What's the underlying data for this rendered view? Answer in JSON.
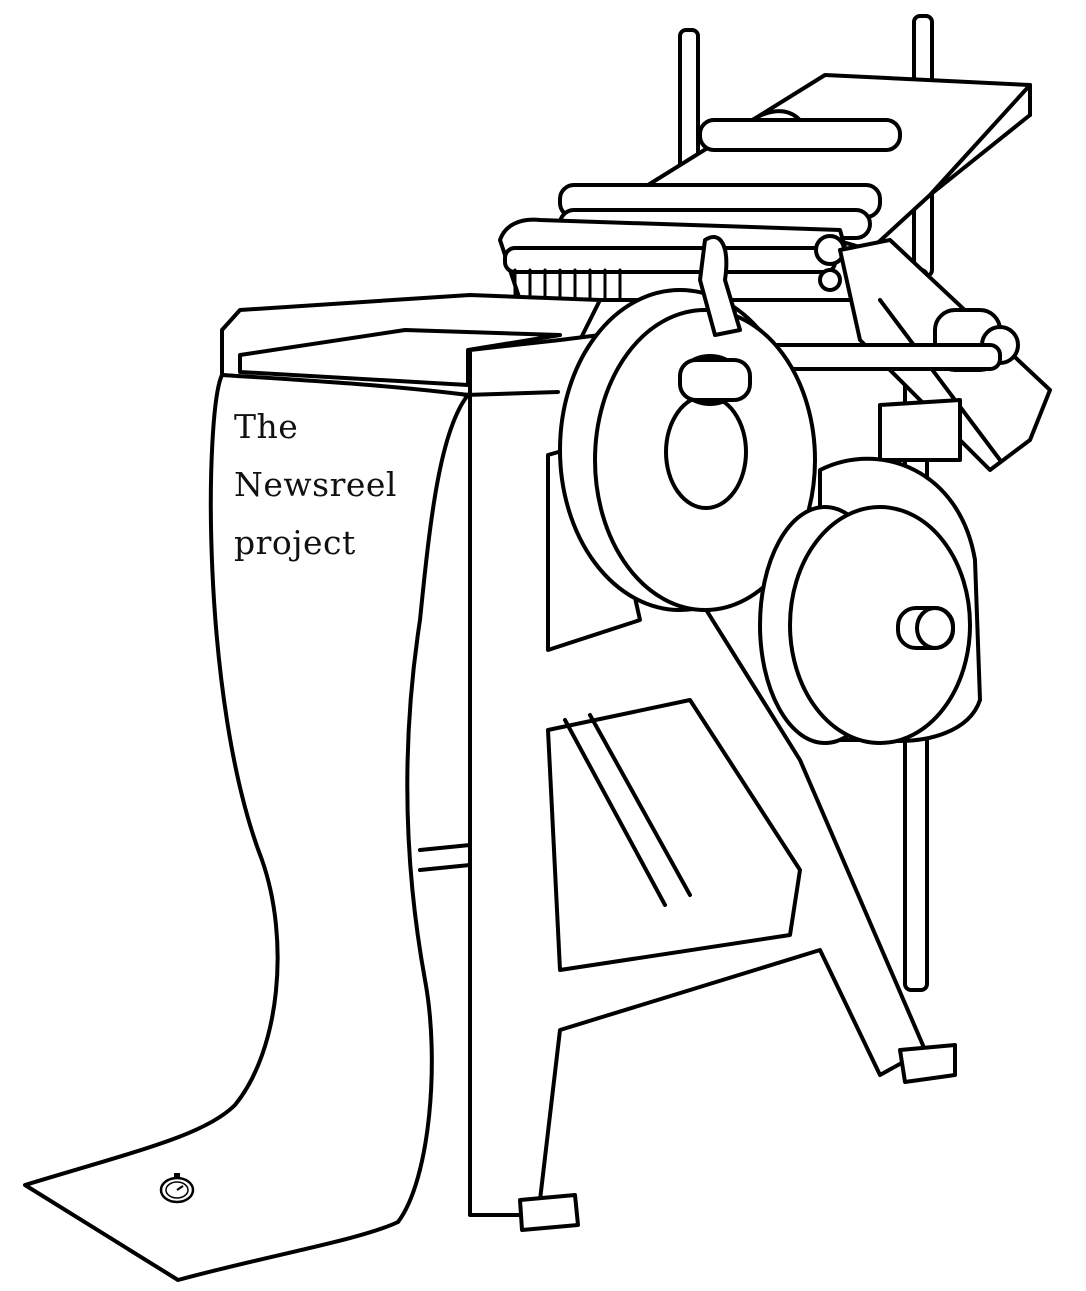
{
  "artwork": {
    "subject": "printing press",
    "line_color": "#000000",
    "background_color": "#ffffff"
  },
  "title": {
    "line1": "The",
    "line2": "Newsreel",
    "line3": "project"
  },
  "icons": {
    "emblem": "stopwatch-icon"
  }
}
